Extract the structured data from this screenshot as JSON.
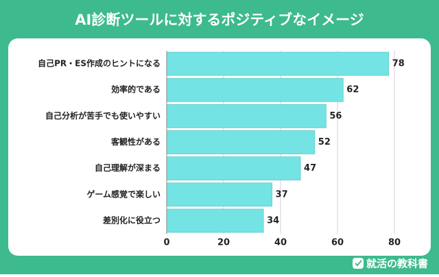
{
  "chart_data": {
    "type": "bar",
    "orientation": "horizontal",
    "title": "AI診断ツールに対するポジティブなイメージ",
    "categories": [
      "自己PR・ES作成のヒントになる",
      "効率的である",
      "自己分析が苦手でも使いやすい",
      "客観性がある",
      "自己理解が深まる",
      "ゲーム感覚で楽しい",
      "差別化に役立つ"
    ],
    "values": [
      78,
      62,
      56,
      52,
      47,
      37,
      34
    ],
    "color": "#74e3e3",
    "xlim": [
      0,
      80
    ],
    "xticks": [
      0,
      20,
      40,
      60,
      80
    ],
    "grid": true
  },
  "footer": {
    "brand": "就活の教科書"
  }
}
